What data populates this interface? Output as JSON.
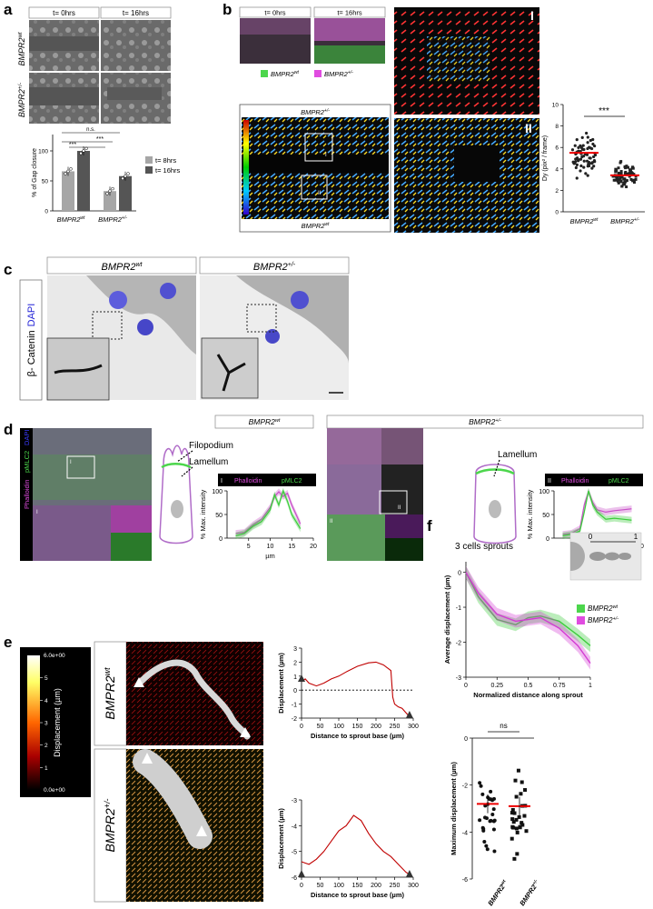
{
  "panels": {
    "a": "a",
    "b": "b",
    "c": "c",
    "d": "d",
    "e": "e",
    "f": "f"
  },
  "a": {
    "time_labels": [
      "t= 0hrs",
      "t= 16hrs"
    ],
    "row_labels": [
      "BMPR2",
      "wt",
      "BMPR2",
      "+/-"
    ],
    "sig": [
      "n.s.",
      "***",
      "***"
    ],
    "legend": [
      "t= 8hrs",
      "t= 16hrs"
    ],
    "legend_colors": [
      "#a6a6a6",
      "#555555"
    ],
    "ylabel": "% of Gap closure",
    "yticks": [
      "0",
      "50",
      "100"
    ],
    "xcats": [
      "BMPR2",
      "wt",
      "BMPR2",
      "+/-"
    ]
  },
  "b": {
    "time_labels": [
      "t= 0hrs",
      "t= 16hrs"
    ],
    "legend": [
      "BMPR2",
      "wt",
      "BMPR2",
      "+/-"
    ],
    "legend_colors": [
      "#4cd64c",
      "#e04ce0"
    ],
    "top_label": [
      "BMPR2",
      "+/-"
    ],
    "bottom_label": [
      "BMPR2",
      "wt"
    ],
    "roman": [
      "I",
      "II"
    ]
  },
  "chart_b": {
    "ylabel": "Dy (pix² / frame)",
    "yticks": [
      "0",
      "2",
      "4",
      "6",
      "8",
      "10"
    ],
    "sig": "***",
    "xcats": [
      "BMPR2",
      "wt",
      "BMPR2",
      "+/-"
    ]
  },
  "c": {
    "side_label_1": "β- Catenin",
    "side_label_2": "DAPI",
    "titles": [
      "BMPR2",
      "wt",
      "BMPR2",
      "+/-"
    ]
  },
  "d": {
    "titles": [
      "BMPR2",
      "wt",
      "BMPR2",
      "+/-"
    ],
    "side": [
      "Phalloidin",
      "pMLC2",
      "DAPI"
    ],
    "filopodium": "Filopodium",
    "lamellum": "Lamellum",
    "legend": [
      "Phalloidin",
      "pMLC2"
    ],
    "ylabel": "% Max. intensity",
    "xlabel": "µm",
    "yticks": [
      "0",
      "50",
      "100"
    ],
    "xticks": [
      "5",
      "10",
      "15",
      "20"
    ],
    "roman": [
      "I",
      "II"
    ]
  },
  "e": {
    "colorbar_top": "6.0e+00",
    "colorbar_bottom": "0.0e+00",
    "colorbar_ticks": [
      "5",
      "4",
      "3",
      "2",
      "1"
    ],
    "colorbar_label": "Displacement (µm)",
    "row_labels": [
      "BMPR2",
      "wt",
      "BMPR2",
      "+/-"
    ],
    "ylabel": "Displacement (µm)",
    "xlabel": "Distance to sprout base (µm)",
    "xticks": [
      "0",
      "50",
      "100",
      "150",
      "200",
      "250",
      "300"
    ],
    "yticks_top": [
      "3",
      "2",
      "1",
      "0",
      "-1",
      "-2"
    ],
    "yticks_bottom": [
      "-3",
      "-4",
      "-5",
      "-6"
    ]
  },
  "f": {
    "title": "3 cells sprouts",
    "schema_ticks": [
      "0",
      "1"
    ],
    "ylabel": "Average displacement (µm)",
    "xlabel": "Normalized distance along sprout",
    "yticks": [
      "0",
      "-1",
      "-2",
      "-3"
    ],
    "xticks": [
      "0",
      "0.25",
      "0.5",
      "0.75",
      "1"
    ],
    "legend": [
      "BMPR2",
      "wt",
      "BMPR2",
      "+/-"
    ],
    "legend_colors": [
      "#4cd64c",
      "#e04ce0"
    ],
    "ylabel2": "Maximum displacement (µm)",
    "yticks2": [
      "0",
      "-2",
      "-4",
      "-6"
    ],
    "sig": "ns",
    "xcats": [
      "BMPR2",
      "wt",
      "BMPR2",
      "+/-"
    ]
  },
  "chart_data": [
    {
      "type": "bar",
      "panel": "a",
      "categories": [
        "BMPR2wt",
        "BMPR2+/-"
      ],
      "series": [
        {
          "name": "t= 8hrs",
          "values": [
            66,
            33
          ]
        },
        {
          "name": "t= 16hrs",
          "values": [
            100,
            58
          ]
        }
      ],
      "ylabel": "% of Gap closure",
      "ylim": [
        0,
        100
      ]
    },
    {
      "type": "scatter",
      "panel": "b",
      "categories": [
        "BMPR2wt",
        "BMPR2+/-"
      ],
      "means": [
        5.5,
        3.4
      ],
      "ranges": [
        [
          2.6,
          8.2
        ],
        [
          2.0,
          5.0
        ]
      ],
      "ylabel": "Dy (pix² / frame)",
      "ylim": [
        0,
        10
      ]
    },
    {
      "type": "line",
      "panel": "d-I",
      "series": [
        {
          "name": "Phalloidin",
          "x": [
            2,
            4,
            6,
            8,
            10,
            11,
            12,
            13,
            14,
            15,
            17
          ],
          "values": [
            10,
            12,
            28,
            40,
            65,
            88,
            98,
            88,
            95,
            70,
            30
          ]
        },
        {
          "name": "pMLC2",
          "x": [
            2,
            4,
            6,
            8,
            10,
            11,
            12,
            13,
            14,
            15,
            17
          ],
          "values": [
            5,
            10,
            25,
            35,
            60,
            92,
            70,
            100,
            78,
            50,
            20
          ]
        }
      ],
      "xlabel": "µm",
      "ylabel": "% Max. intensity",
      "xlim": [
        0,
        20
      ],
      "ylim": [
        0,
        100
      ]
    },
    {
      "type": "line",
      "panel": "d-II",
      "series": [
        {
          "name": "Phalloidin",
          "x": [
            2,
            4,
            6,
            7,
            8,
            9,
            10,
            12,
            14,
            16,
            18
          ],
          "values": [
            8,
            10,
            20,
            70,
            98,
            75,
            60,
            55,
            58,
            60,
            62
          ]
        },
        {
          "name": "pMLC2",
          "x": [
            2,
            4,
            6,
            7,
            8,
            9,
            10,
            12,
            14,
            16,
            18
          ],
          "values": [
            5,
            8,
            15,
            55,
            100,
            70,
            55,
            40,
            42,
            40,
            38
          ]
        }
      ],
      "xlabel": "µm",
      "ylabel": "% Max. intensity",
      "xlim": [
        0,
        20
      ],
      "ylim": [
        0,
        100
      ]
    },
    {
      "type": "line",
      "panel": "e-wt",
      "x": [
        0,
        10,
        20,
        40,
        60,
        80,
        100,
        120,
        150,
        180,
        200,
        220,
        240,
        245,
        250,
        260,
        270,
        280,
        290
      ],
      "values": [
        0.6,
        0.8,
        0.5,
        0.3,
        0.5,
        0.8,
        1.0,
        1.3,
        1.7,
        1.95,
        2.0,
        1.8,
        1.4,
        -0.5,
        -1.0,
        -1.2,
        -1.3,
        -1.6,
        -1.9
      ],
      "xlabel": "Distance to sprout base (µm)",
      "ylabel": "Displacement (µm)",
      "xlim": [
        0,
        300
      ],
      "ylim": [
        -2,
        3
      ]
    },
    {
      "type": "line",
      "panel": "e-het",
      "x": [
        0,
        20,
        40,
        60,
        80,
        100,
        120,
        140,
        160,
        180,
        200,
        220,
        240,
        260,
        280,
        290
      ],
      "values": [
        -5.4,
        -5.5,
        -5.3,
        -5.0,
        -4.6,
        -4.2,
        -4.0,
        -3.6,
        -3.8,
        -4.3,
        -4.7,
        -5.0,
        -5.2,
        -5.5,
        -5.8,
        -5.9
      ],
      "xlabel": "Distance to sprout base (µm)",
      "ylabel": "Displacement (µm)",
      "xlim": [
        0,
        300
      ],
      "ylim": [
        -6,
        -3
      ]
    },
    {
      "type": "line",
      "panel": "f",
      "x": [
        0,
        0.1,
        0.25,
        0.4,
        0.5,
        0.6,
        0.75,
        0.9,
        1.0
      ],
      "series": [
        {
          "name": "BMPR2wt",
          "values": [
            0,
            -0.7,
            -1.35,
            -1.5,
            -1.3,
            -1.25,
            -1.4,
            -1.8,
            -2.1
          ]
        },
        {
          "name": "BMPR2+/-",
          "values": [
            0,
            -0.6,
            -1.2,
            -1.4,
            -1.35,
            -1.3,
            -1.6,
            -2.1,
            -2.6
          ]
        }
      ],
      "xlabel": "Normalized distance along sprout",
      "ylabel": "Average displacement (µm)",
      "xlim": [
        0,
        1
      ],
      "ylim": [
        -3,
        0.3
      ]
    },
    {
      "type": "scatter",
      "panel": "f-bottom",
      "categories": [
        "BMPR2wt",
        "BMPR2+/-"
      ],
      "means": [
        -2.8,
        -2.9
      ],
      "ranges": [
        [
          -5.2,
          -1.2
        ],
        [
          -5.4,
          -1.0
        ]
      ],
      "ylabel": "Maximum displacement (µm)",
      "ylim": [
        -6,
        0
      ]
    }
  ]
}
